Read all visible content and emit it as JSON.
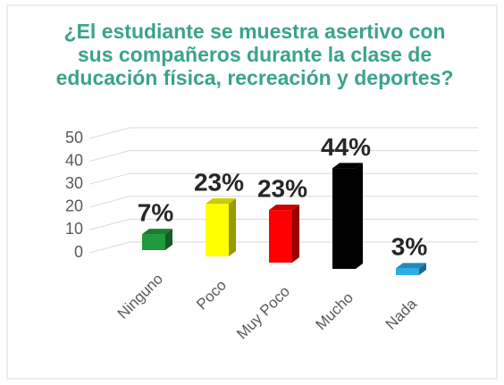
{
  "chart_data": {
    "type": "bar3d",
    "title": "¿El estudiante se muestra asertivo con sus compañeros durante la clase de educación física, recreación y deportes?",
    "categories": [
      "Ninguno",
      "Poco",
      "Muy Poco",
      "Mucho",
      "Nada"
    ],
    "values": [
      7,
      23,
      23,
      44,
      3
    ],
    "value_labels": [
      "7%",
      "23%",
      "23%",
      "44%",
      "3%"
    ],
    "colors": [
      "#1f9a3c",
      "#ffff00",
      "#ff0000",
      "#000000",
      "#29aee6"
    ],
    "ylim": [
      0,
      50
    ],
    "yticks": [
      0,
      10,
      20,
      30,
      40,
      50
    ],
    "grid": true
  }
}
